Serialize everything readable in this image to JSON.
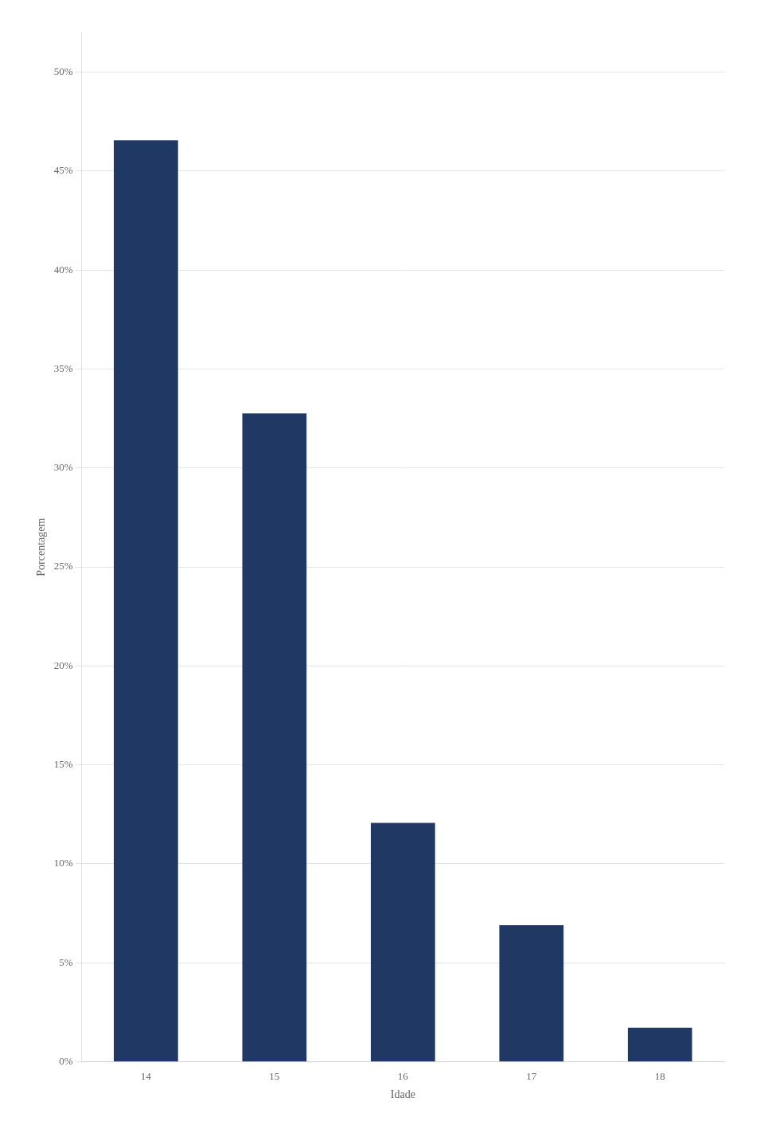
{
  "chart_data": {
    "type": "bar",
    "categories": [
      "14",
      "15",
      "16",
      "17",
      "18"
    ],
    "values": [
      46.55,
      32.76,
      12.07,
      6.9,
      1.72
    ],
    "color": "#1F3864",
    "ylabel": "Porcentagem",
    "xlabel": "Idade",
    "ylim": [
      0,
      52
    ],
    "yticks": [
      {
        "value": 0,
        "label": "0%"
      },
      {
        "value": 5,
        "label": "5%"
      },
      {
        "value": 10,
        "label": "10%"
      },
      {
        "value": 15,
        "label": "15%"
      },
      {
        "value": 20,
        "label": "20%"
      },
      {
        "value": 25,
        "label": "25%"
      },
      {
        "value": 30,
        "label": "30%"
      },
      {
        "value": 35,
        "label": "35%"
      },
      {
        "value": 40,
        "label": "40%"
      },
      {
        "value": 45,
        "label": "45%"
      },
      {
        "value": 50,
        "label": "50%"
      }
    ],
    "grid": true
  }
}
